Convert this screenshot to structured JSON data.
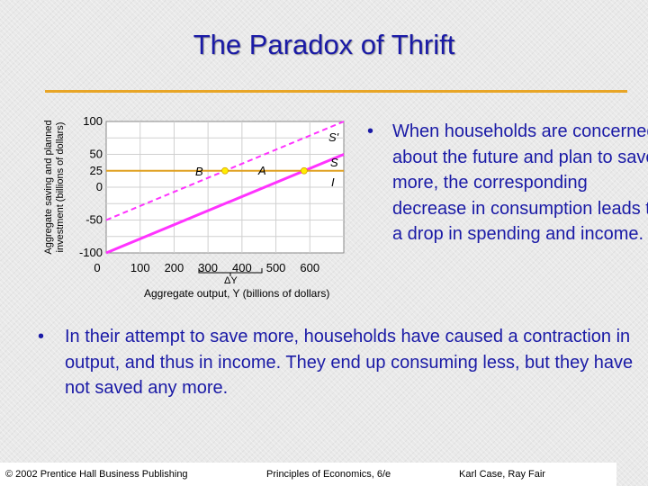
{
  "slide": {
    "title": "The Paradox of Thrift",
    "right_bullet": "When households are concerned about the future and plan to save more, the corresponding decrease in consumption leads to a drop in spending and income.",
    "bottom_bullet": "In their attempt to save more, households have caused a contraction in output, and thus in income.  They end up consuming less, but they have not saved any more.",
    "bullet_symbol": "•"
  },
  "chart": {
    "ylabel_line1": "Aggregate saving and planned",
    "ylabel_line2": "investment (billions of dollars)",
    "xlabel": "Aggregate output, Y (billions of dollars)",
    "y_ticks": [
      "100",
      "50",
      "25",
      "0",
      "-50",
      "-100"
    ],
    "x_ticks": [
      "0",
      "100",
      "200",
      "300",
      "400",
      "500",
      "600"
    ],
    "delta_label": "ΔY",
    "line_labels": {
      "s_prime": "S'",
      "s": "S",
      "i": "I"
    },
    "point_labels": {
      "b": "B",
      "a": "A"
    },
    "colors": {
      "saving": "#ff33ff",
      "investment": "#e0a020",
      "point": "#ffee00"
    }
  },
  "chart_data": {
    "type": "line",
    "xlabel": "Aggregate output, Y (billions of dollars)",
    "ylabel": "Aggregate saving and planned investment (billions of dollars)",
    "xlim": [
      0,
      700
    ],
    "ylim": [
      -100,
      100
    ],
    "series": [
      {
        "name": "S'",
        "x": [
          0,
          700
        ],
        "y": [
          -50,
          100
        ]
      },
      {
        "name": "S",
        "x": [
          0,
          700
        ],
        "y": [
          -100,
          50
        ]
      },
      {
        "name": "I",
        "x": [
          0,
          700
        ],
        "y": [
          25,
          25
        ]
      }
    ],
    "points": [
      {
        "name": "B",
        "x": 350,
        "y": 25
      },
      {
        "name": "A",
        "x": 583,
        "y": 25
      }
    ]
  },
  "footer": {
    "left": "© 2002 Prentice Hall Business Publishing",
    "center": "Principles of Economics, 6/e",
    "right": "Karl Case, Ray Fair"
  }
}
